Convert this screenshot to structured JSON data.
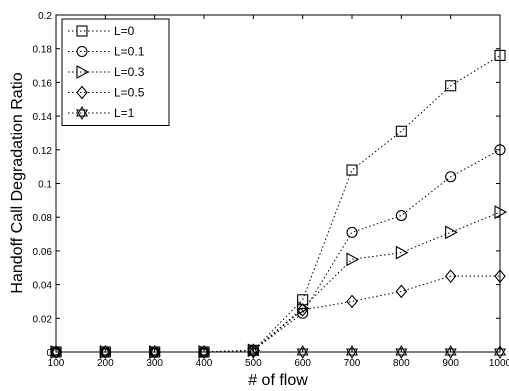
{
  "chart_data": {
    "type": "line",
    "title": "",
    "xlabel": "# of flow",
    "ylabel": "Handoff Call Degradation Ratio",
    "x": [
      100,
      200,
      300,
      400,
      500,
      600,
      700,
      800,
      900,
      1000
    ],
    "xlim": [
      100,
      1000
    ],
    "ylim": [
      0,
      0.2
    ],
    "xticks": [
      "100",
      "200",
      "300",
      "400",
      "500",
      "600",
      "700",
      "800",
      "900",
      "1000"
    ],
    "yticks": [
      "0",
      "0.02",
      "0.04",
      "0.06",
      "0.08",
      "0.1",
      "0.12",
      "0.14",
      "0.16",
      "0.18",
      "0.2"
    ],
    "yticks_values": [
      0,
      0.02,
      0.04,
      0.06,
      0.08,
      0.1,
      0.12,
      0.14,
      0.16,
      0.18,
      0.2
    ],
    "grid": false,
    "legend_position": "top-left",
    "line_style": "dotted",
    "series": [
      {
        "name": "L=0",
        "marker": "square",
        "values": [
          0,
          0,
          0,
          0,
          0.001,
          0.031,
          0.108,
          0.131,
          0.158,
          0.176
        ]
      },
      {
        "name": "L=0.1",
        "marker": "circle",
        "values": [
          0,
          0,
          0,
          0,
          0.001,
          0.023,
          0.071,
          0.081,
          0.104,
          0.12
        ]
      },
      {
        "name": "L=0.3",
        "marker": "triangle-right",
        "values": [
          0,
          0,
          0,
          0,
          0.001,
          0.026,
          0.055,
          0.059,
          0.071,
          0.083
        ]
      },
      {
        "name": "L=0.5",
        "marker": "diamond",
        "values": [
          0,
          0,
          0,
          0,
          0.001,
          0.025,
          0.03,
          0.036,
          0.045,
          0.045
        ]
      },
      {
        "name": "L=1",
        "marker": "hexagram",
        "values": [
          0,
          0,
          0,
          0,
          0,
          0,
          0,
          0,
          0,
          0
        ]
      }
    ]
  }
}
